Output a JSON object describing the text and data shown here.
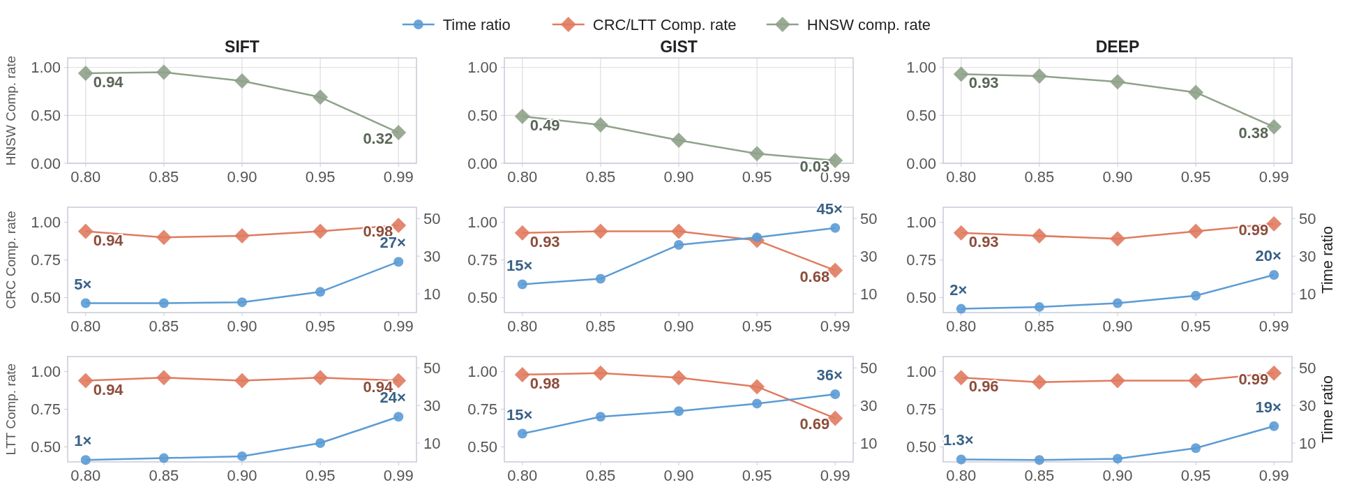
{
  "chart_data": [
    {
      "type": "line",
      "title": "SIFT",
      "ylabel": "HNSW Comp. rate",
      "categories": [
        "0.80",
        "0.85",
        "0.90",
        "0.95",
        "0.99"
      ],
      "ylim": [
        0,
        1.1
      ],
      "yticks": [
        {
          "value": 0,
          "label": "0.00"
        },
        {
          "value": 0.5,
          "label": "0.50"
        },
        {
          "value": 1,
          "label": "1.00"
        }
      ],
      "grid": true,
      "series": [
        {
          "color": "#8fa28a",
          "marker": "diamond",
          "values": [
            0.94,
            0.95,
            0.86,
            0.69,
            0.32
          ],
          "value_labels": [
            "0.94",
            null,
            null,
            null,
            "0.32"
          ]
        }
      ]
    },
    {
      "type": "line",
      "title": "GIST",
      "categories": [
        "0.80",
        "0.85",
        "0.90",
        "0.95",
        "0.99"
      ],
      "ylim": [
        0,
        1.1
      ],
      "yticks": [
        {
          "value": 0,
          "label": "0.00"
        },
        {
          "value": 0.5,
          "label": "0.50"
        },
        {
          "value": 1,
          "label": "1.00"
        }
      ],
      "grid": true,
      "legend": "top",
      "series": [
        {
          "name": "HNSW comp. rate",
          "color": "#8fa28a",
          "marker": "diamond",
          "values": [
            0.49,
            0.4,
            0.24,
            0.1,
            0.03
          ],
          "value_labels": [
            "0.49",
            null,
            null,
            null,
            "0.03"
          ]
        }
      ]
    },
    {
      "type": "line",
      "title": "DEEP",
      "categories": [
        "0.80",
        "0.85",
        "0.90",
        "0.95",
        "0.99"
      ],
      "ylim": [
        0,
        1.1
      ],
      "yticks": [
        {
          "value": 0,
          "label": "0.00"
        },
        {
          "value": 0.5,
          "label": "0.50"
        },
        {
          "value": 1,
          "label": "1.00"
        }
      ],
      "grid": true,
      "series": [
        {
          "color": "#8fa28a",
          "marker": "diamond",
          "values": [
            0.93,
            0.91,
            0.85,
            0.74,
            0.38
          ],
          "value_labels": [
            "0.93",
            null,
            null,
            null,
            "0.38"
          ]
        }
      ]
    },
    {
      "type": "line",
      "ylabel": "CRC Comp. rate",
      "categories": [
        "0.80",
        "0.85",
        "0.90",
        "0.95",
        "0.99"
      ],
      "ylim": [
        0.4,
        1.1
      ],
      "yticks": [
        {
          "value": 0.5,
          "label": "0.50"
        },
        {
          "value": 0.75,
          "label": "0.75"
        },
        {
          "value": 1,
          "label": "1.00"
        }
      ],
      "y2lim": [
        0,
        56
      ],
      "y2ticks": [
        10,
        30,
        50
      ],
      "series": [
        {
          "color": "#e07b5f",
          "marker": "diamond",
          "values": [
            0.94,
            0.9,
            0.91,
            0.94,
            0.98
          ],
          "value_labels": [
            "0.94",
            null,
            null,
            null,
            "0.98"
          ]
        },
        {
          "color": "#5b9bd5",
          "marker": "circle",
          "axis": "y2",
          "values": [
            5,
            5,
            5.5,
            11,
            27
          ],
          "value_labels": [
            "5×",
            null,
            null,
            null,
            "27×"
          ]
        }
      ]
    },
    {
      "type": "line",
      "categories": [
        "0.80",
        "0.85",
        "0.90",
        "0.95",
        "0.99"
      ],
      "ylim": [
        0.4,
        1.1
      ],
      "yticks": [
        {
          "value": 0.5,
          "label": "0.50"
        },
        {
          "value": 0.75,
          "label": "0.75"
        },
        {
          "value": 1,
          "label": "1.00"
        }
      ],
      "y2lim": [
        0,
        56
      ],
      "y2ticks": [
        10,
        30,
        50
      ],
      "legend": "top",
      "series": [
        {
          "name": "CRC/LTT Comp. rate",
          "color": "#e07b5f",
          "marker": "diamond",
          "values": [
            0.93,
            0.94,
            0.94,
            0.88,
            0.68
          ],
          "value_labels": [
            "0.93",
            null,
            null,
            null,
            "0.68"
          ]
        },
        {
          "name": "Time ratio",
          "color": "#5b9bd5",
          "marker": "circle",
          "axis": "y2",
          "values": [
            15,
            18,
            36,
            40,
            45
          ],
          "value_labels": [
            "15×",
            null,
            null,
            null,
            "45×"
          ]
        }
      ]
    },
    {
      "type": "line",
      "y2label": "Time ratio",
      "categories": [
        "0.80",
        "0.85",
        "0.90",
        "0.95",
        "0.99"
      ],
      "ylim": [
        0.4,
        1.1
      ],
      "yticks": [
        {
          "value": 0.5,
          "label": "0.50"
        },
        {
          "value": 0.75,
          "label": "0.75"
        },
        {
          "value": 1,
          "label": "1.00"
        }
      ],
      "y2lim": [
        0,
        56
      ],
      "y2ticks": [
        10,
        30,
        50
      ],
      "series": [
        {
          "color": "#e07b5f",
          "marker": "diamond",
          "values": [
            0.93,
            0.91,
            0.89,
            0.94,
            0.99
          ],
          "value_labels": [
            "0.93",
            null,
            null,
            null,
            "0.99"
          ]
        },
        {
          "color": "#5b9bd5",
          "marker": "circle",
          "axis": "y2",
          "values": [
            2,
            3,
            5,
            9,
            20
          ],
          "value_labels": [
            "2×",
            null,
            null,
            null,
            "20×"
          ]
        }
      ]
    },
    {
      "type": "line",
      "ylabel": "LTT Comp. rate",
      "categories": [
        "0.80",
        "0.85",
        "0.90",
        "0.95",
        "0.99"
      ],
      "ylim": [
        0.4,
        1.1
      ],
      "yticks": [
        {
          "value": 0.5,
          "label": "0.50"
        },
        {
          "value": 0.75,
          "label": "0.75"
        },
        {
          "value": 1,
          "label": "1.00"
        }
      ],
      "y2lim": [
        0,
        56
      ],
      "y2ticks": [
        10,
        30,
        50
      ],
      "series": [
        {
          "color": "#e07b5f",
          "marker": "diamond",
          "values": [
            0.94,
            0.96,
            0.94,
            0.96,
            0.94
          ],
          "value_labels": [
            "0.94",
            null,
            null,
            null,
            "0.94"
          ]
        },
        {
          "color": "#5b9bd5",
          "marker": "circle",
          "axis": "y2",
          "values": [
            1,
            2,
            3,
            10,
            24
          ],
          "value_labels": [
            "1×",
            null,
            null,
            null,
            "24×"
          ]
        }
      ]
    },
    {
      "type": "line",
      "categories": [
        "0.80",
        "0.85",
        "0.90",
        "0.95",
        "0.99"
      ],
      "ylim": [
        0.4,
        1.1
      ],
      "yticks": [
        {
          "value": 0.5,
          "label": "0.50"
        },
        {
          "value": 0.75,
          "label": "0.75"
        },
        {
          "value": 1,
          "label": "1.00"
        }
      ],
      "y2lim": [
        0,
        56
      ],
      "y2ticks": [
        10,
        30,
        50
      ],
      "series": [
        {
          "color": "#e07b5f",
          "marker": "diamond",
          "values": [
            0.98,
            0.99,
            0.96,
            0.9,
            0.69
          ],
          "value_labels": [
            "0.98",
            null,
            null,
            null,
            "0.69"
          ]
        },
        {
          "color": "#5b9bd5",
          "marker": "circle",
          "axis": "y2",
          "values": [
            15,
            24,
            27,
            31,
            36
          ],
          "value_labels": [
            "15×",
            null,
            null,
            null,
            "36×"
          ]
        }
      ]
    },
    {
      "type": "line",
      "y2label": "Time ratio",
      "categories": [
        "0.80",
        "0.85",
        "0.90",
        "0.95",
        "0.99"
      ],
      "ylim": [
        0.4,
        1.1
      ],
      "yticks": [
        {
          "value": 0.5,
          "label": "0.50"
        },
        {
          "value": 0.75,
          "label": "0.75"
        },
        {
          "value": 1,
          "label": "1.00"
        }
      ],
      "y2lim": [
        0,
        56
      ],
      "y2ticks": [
        10,
        30,
        50
      ],
      "series": [
        {
          "color": "#e07b5f",
          "marker": "diamond",
          "values": [
            0.96,
            0.93,
            0.94,
            0.94,
            0.99
          ],
          "value_labels": [
            "0.96",
            null,
            null,
            null,
            "0.99"
          ]
        },
        {
          "color": "#5b9bd5",
          "marker": "circle",
          "axis": "y2",
          "values": [
            1.3,
            1.0,
            1.7,
            7.3,
            19
          ],
          "value_labels": [
            "1.3×",
            null,
            null,
            null,
            "19×"
          ]
        }
      ]
    }
  ]
}
